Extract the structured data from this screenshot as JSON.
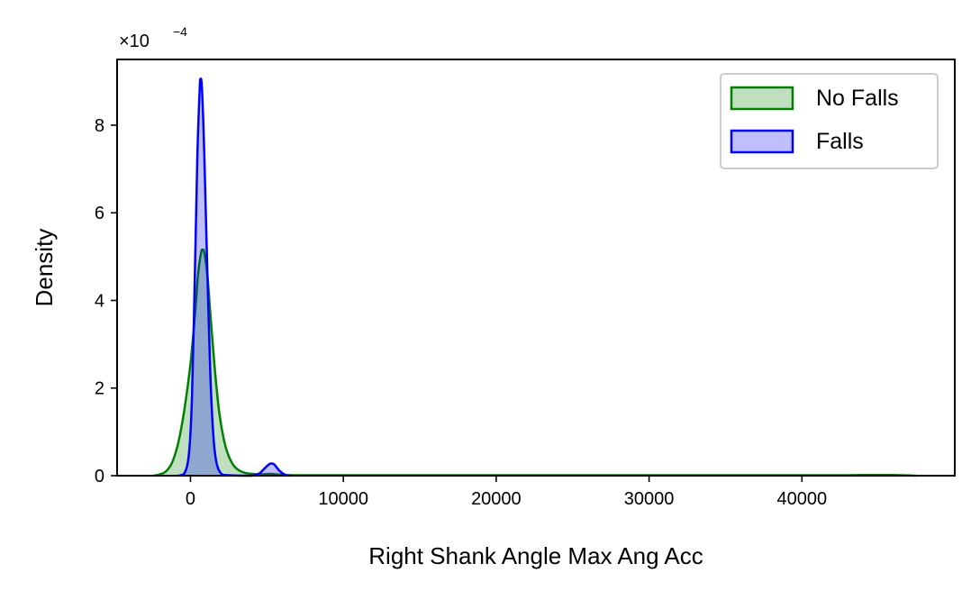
{
  "chart_data": {
    "type": "area",
    "xlabel": "Right Shank Angle Max Ang Acc",
    "ylabel": "Density",
    "y_offset_base": "×10",
    "y_offset_exponent": "−4",
    "xlim": [
      -4800,
      50000
    ],
    "ylim": [
      0,
      9.5
    ],
    "x_ticks": [
      0,
      10000,
      20000,
      30000,
      40000
    ],
    "x_tick_labels": [
      "0",
      "10000",
      "20000",
      "30000",
      "40000"
    ],
    "y_ticks": [
      0,
      2,
      4,
      6,
      8
    ],
    "y_tick_labels": [
      "0",
      "2",
      "4",
      "6",
      "8"
    ],
    "grid": false,
    "legend_position": "top-right",
    "series": [
      {
        "name": "No Falls",
        "color": "#008000",
        "fill_color": "#008000",
        "points": [
          [
            -2400,
            0.0
          ],
          [
            -2000,
            0.03
          ],
          [
            -1600,
            0.1
          ],
          [
            -1200,
            0.3
          ],
          [
            -800,
            0.75
          ],
          [
            -400,
            1.5
          ],
          [
            0,
            2.55
          ],
          [
            300,
            3.7
          ],
          [
            500,
            4.6
          ],
          [
            700,
            5.1
          ],
          [
            800,
            5.15
          ],
          [
            900,
            5.1
          ],
          [
            1100,
            4.6
          ],
          [
            1300,
            3.7
          ],
          [
            1600,
            2.4
          ],
          [
            1900,
            1.4
          ],
          [
            2200,
            0.8
          ],
          [
            2500,
            0.45
          ],
          [
            2900,
            0.2
          ],
          [
            3500,
            0.07
          ],
          [
            4500,
            0.03
          ],
          [
            5200,
            0.04
          ],
          [
            6000,
            0.02
          ],
          [
            8000,
            0.01
          ],
          [
            20000,
            0.01
          ],
          [
            40000,
            0.01
          ],
          [
            44000,
            0.015
          ],
          [
            46000,
            0.015
          ],
          [
            47500,
            0.0
          ]
        ]
      },
      {
        "name": "Falls",
        "color": "#0000ff",
        "fill_color": "#0000ff",
        "points": [
          [
            -800,
            0.0
          ],
          [
            -400,
            0.05
          ],
          [
            -100,
            0.5
          ],
          [
            100,
            1.8
          ],
          [
            300,
            4.8
          ],
          [
            450,
            7.3
          ],
          [
            600,
            8.8
          ],
          [
            650,
            9.05
          ],
          [
            750,
            8.85
          ],
          [
            900,
            7.4
          ],
          [
            1100,
            4.7
          ],
          [
            1300,
            2.3
          ],
          [
            1500,
            0.9
          ],
          [
            1700,
            0.3
          ],
          [
            2000,
            0.05
          ],
          [
            2500,
            0.01
          ],
          [
            4000,
            0.0
          ],
          [
            4500,
            0.05
          ],
          [
            4800,
            0.15
          ],
          [
            5100,
            0.25
          ],
          [
            5300,
            0.28
          ],
          [
            5500,
            0.25
          ],
          [
            5800,
            0.12
          ],
          [
            6200,
            0.02
          ],
          [
            6600,
            0.0
          ]
        ]
      }
    ]
  }
}
